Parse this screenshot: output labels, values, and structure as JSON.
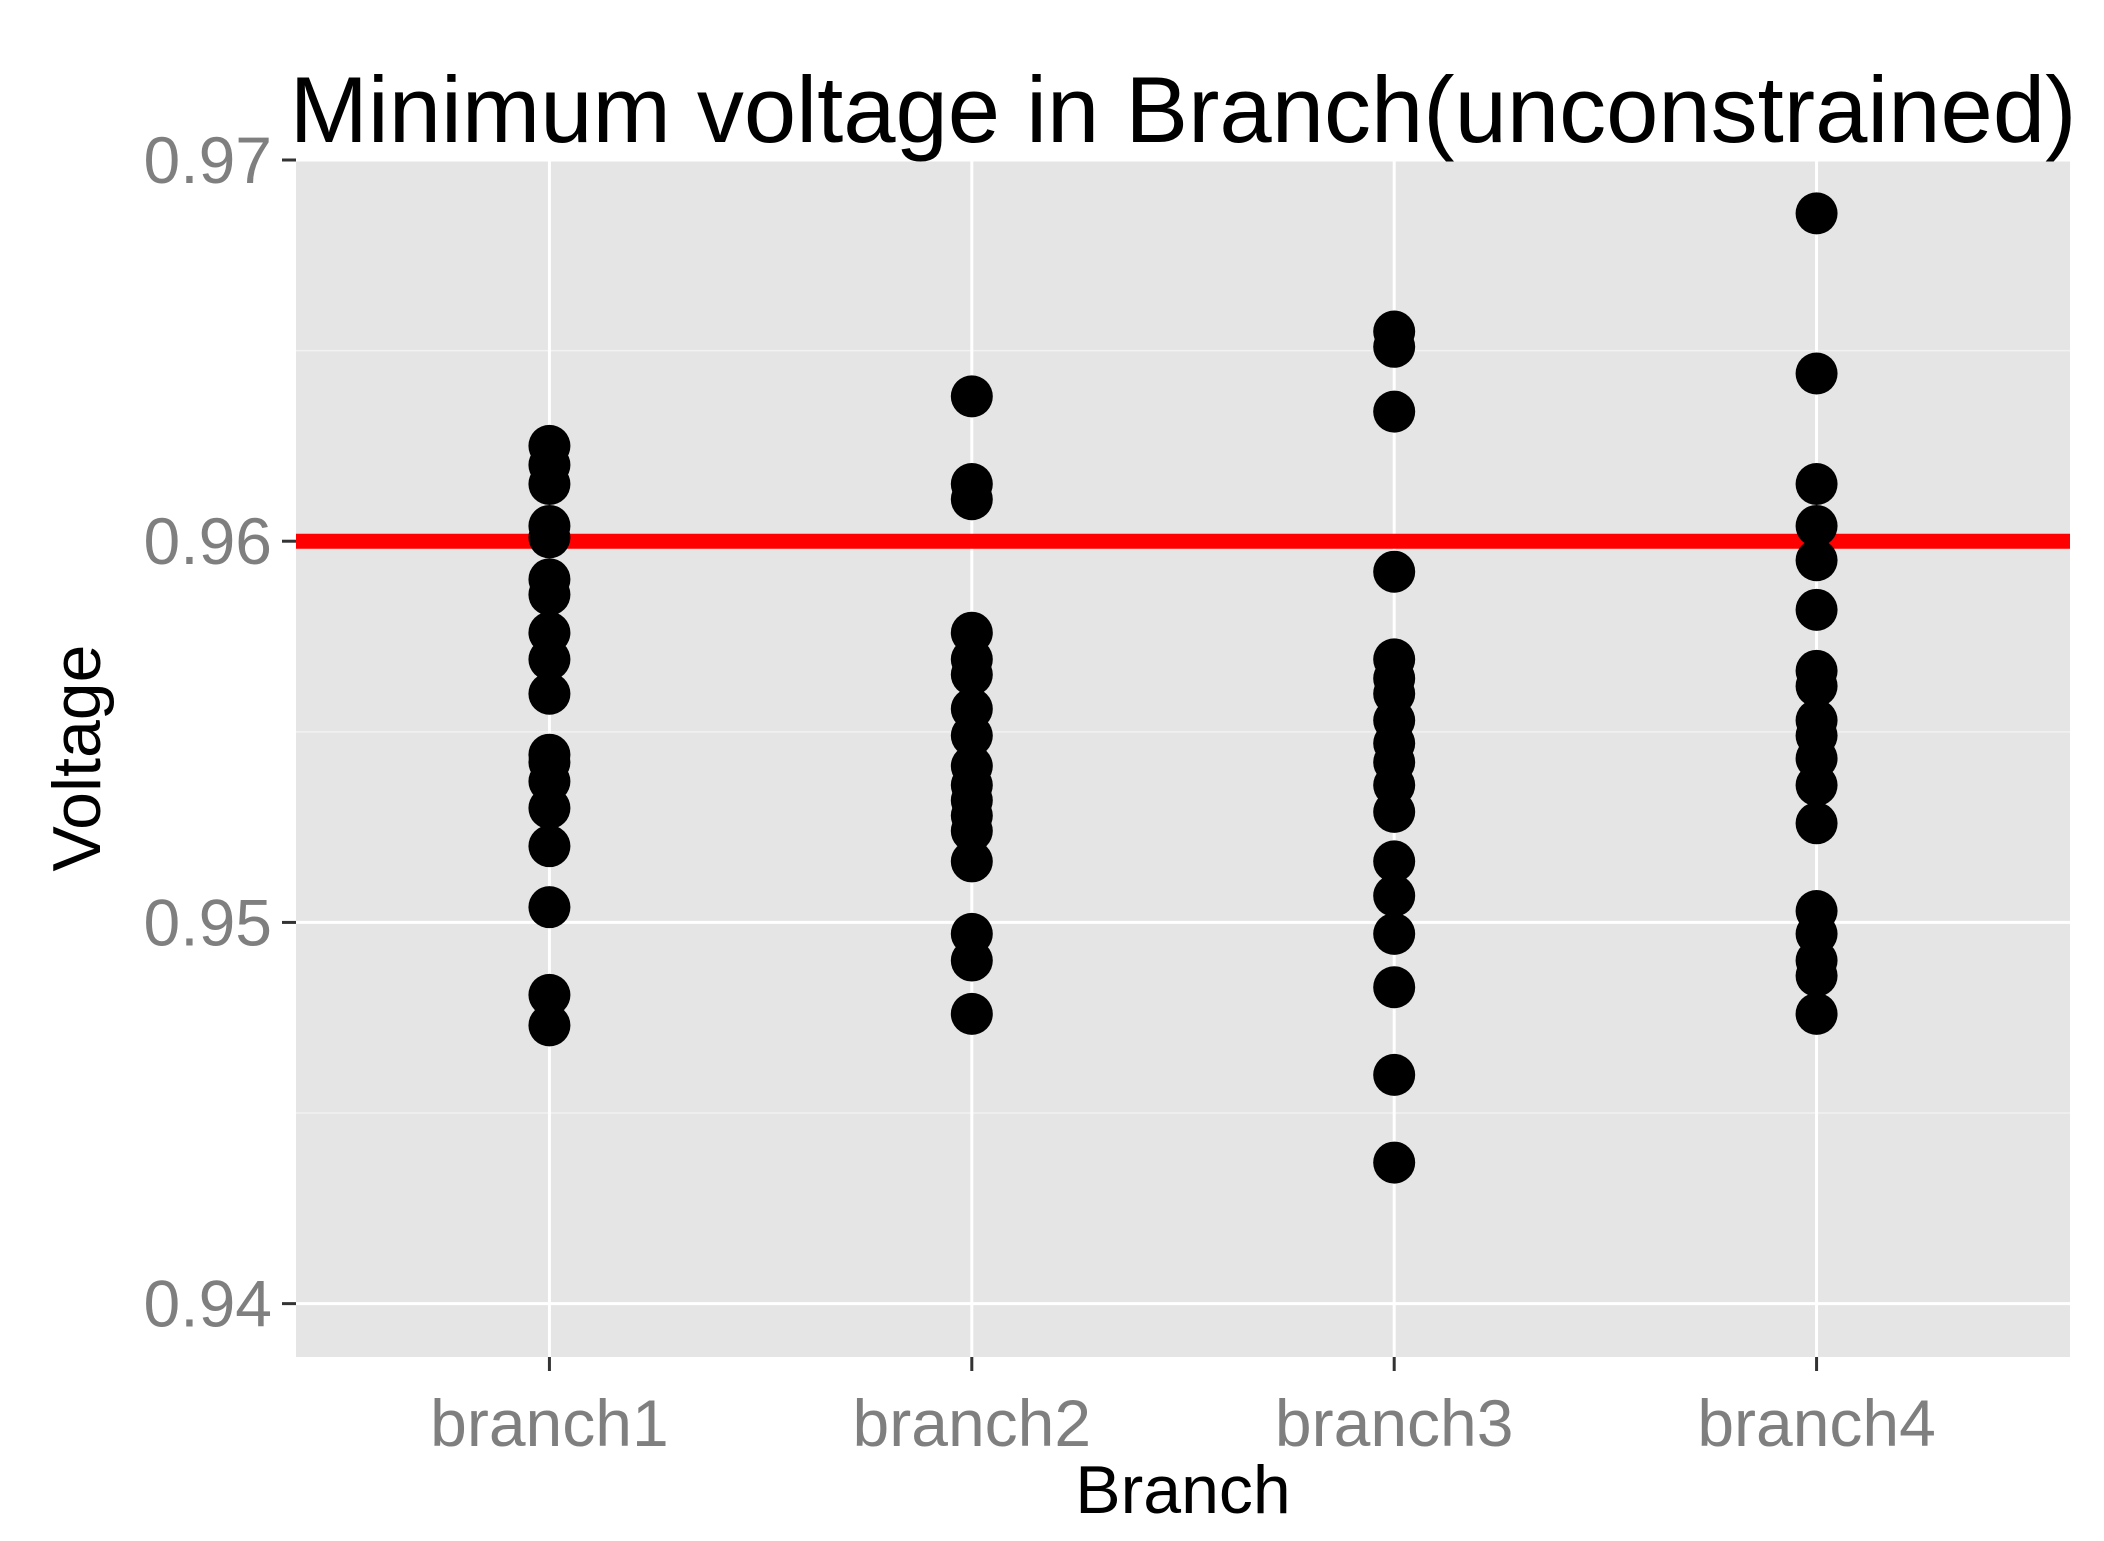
{
  "chart_data": {
    "type": "scatter",
    "title": "Minimum voltage in Branch(unconstrained)",
    "xlabel": "Branch",
    "ylabel": "Voltage",
    "categories": [
      "branch1",
      "branch2",
      "branch3",
      "branch4"
    ],
    "ylim": [
      0.9386,
      0.97
    ],
    "yticks": [
      0.94,
      0.95,
      0.96,
      0.97
    ],
    "ytick_labels": [
      "0.94",
      "0.95",
      "0.96",
      "0.97"
    ],
    "grid": true,
    "legend": "none",
    "reference_line": {
      "y": 0.96,
      "color": "#ff0000"
    },
    "series": [
      {
        "category": "branch1",
        "values": [
          0.9625,
          0.962,
          0.9615,
          0.9604,
          0.9601,
          0.959,
          0.9586,
          0.9576,
          0.9569,
          0.956,
          0.9544,
          0.9542,
          0.9537,
          0.953,
          0.952,
          0.9504,
          0.9481,
          0.9473
        ]
      },
      {
        "category": "branch2",
        "values": [
          0.9638,
          0.9615,
          0.9611,
          0.9576,
          0.9569,
          0.9565,
          0.9556,
          0.9549,
          0.9541,
          0.9536,
          0.9532,
          0.9528,
          0.9524,
          0.9516,
          0.9497,
          0.949,
          0.9476
        ]
      },
      {
        "category": "branch3",
        "values": [
          0.9655,
          0.9651,
          0.9634,
          0.9592,
          0.9569,
          0.9564,
          0.956,
          0.9553,
          0.9547,
          0.9542,
          0.9536,
          0.9529,
          0.9516,
          0.9507,
          0.9497,
          0.9483,
          0.946,
          0.9437
        ]
      },
      {
        "category": "branch4",
        "values": [
          0.9686,
          0.9644,
          0.9615,
          0.9604,
          0.9595,
          0.9582,
          0.9566,
          0.9562,
          0.9553,
          0.9549,
          0.9543,
          0.9536,
          0.9526,
          0.9503,
          0.9497,
          0.949,
          0.9486,
          0.9476
        ]
      }
    ],
    "colors": {
      "panel": "#e5e5e5",
      "grid_major": "#ffffff",
      "grid_minor": "#f2f2f2",
      "points": "#000000",
      "tick_text": "#7f7f7f"
    }
  }
}
